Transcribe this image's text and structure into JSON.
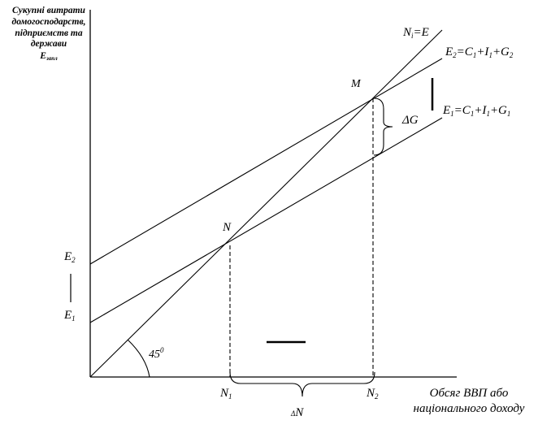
{
  "y_axis_label": {
    "line1": "Сукупні витрати",
    "line2": "домогосподарств,",
    "line3": "підприємств та",
    "line4": "держави",
    "line5_base": "E",
    "line5_sub": "запл"
  },
  "x_axis_label": {
    "line1": "Обсяг ВВП або",
    "line2": "національного доходу"
  },
  "lines": {
    "ne": {
      "a": "N",
      "a_sub": "i",
      "b": "=E"
    },
    "e2": {
      "a": "E",
      "a_sub": "2",
      "b": "=C",
      "b_sub": "1",
      "c": "+I",
      "c_sub": "1",
      "d": "+G",
      "d_sub": "2"
    },
    "e1": {
      "a": "E",
      "a_sub": "1",
      "b": "=C",
      "b_sub": "1",
      "c": "+I",
      "c_sub": "1",
      "d": "+G",
      "d_sub": "1"
    }
  },
  "points": {
    "m": "M",
    "n": "N"
  },
  "delta_g": "ΔG",
  "delta_n": {
    "delta": "Δ",
    "n": "N"
  },
  "angle": {
    "value": "45",
    "sup": "0"
  },
  "y_ticks": {
    "e2": {
      "base": "E",
      "sub": "2"
    },
    "e1": {
      "base": "E",
      "sub": "1"
    }
  },
  "x_ticks": {
    "n1": {
      "base": "N",
      "sub": "1"
    },
    "n2": {
      "base": "N",
      "sub": "2"
    }
  }
}
